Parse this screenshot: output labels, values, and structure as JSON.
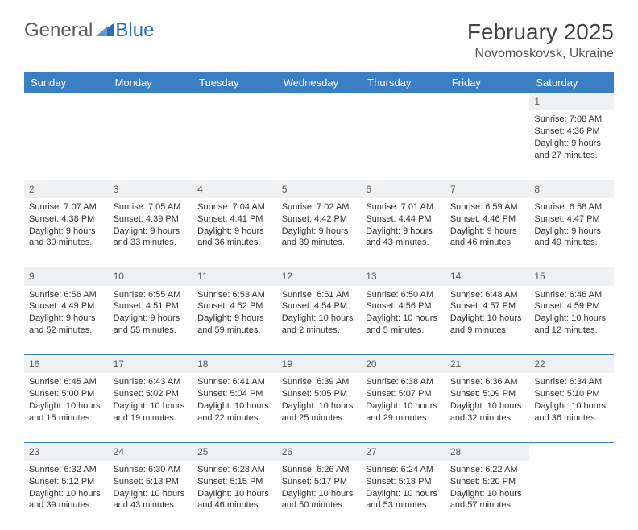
{
  "brand": {
    "part1": "General",
    "part2": "Blue"
  },
  "title": "February 2025",
  "location": "Novomoskovsk, Ukraine",
  "colors": {
    "header_bg": "#3a7fc4",
    "header_text": "#ffffff",
    "daynum_bg": "#eef0f2",
    "border": "#3a7fc4",
    "text": "#333333",
    "logo_gray": "#5a5a5a",
    "logo_blue": "#2a6db3",
    "page_bg": "#ffffff"
  },
  "weekdays": [
    "Sunday",
    "Monday",
    "Tuesday",
    "Wednesday",
    "Thursday",
    "Friday",
    "Saturday"
  ],
  "weeks": [
    {
      "nums": [
        "",
        "",
        "",
        "",
        "",
        "",
        "1"
      ],
      "cells": [
        "",
        "",
        "",
        "",
        "",
        "",
        "Sunrise: 7:08 AM\nSunset: 4:36 PM\nDaylight: 9 hours and 27 minutes."
      ]
    },
    {
      "nums": [
        "2",
        "3",
        "4",
        "5",
        "6",
        "7",
        "8"
      ],
      "cells": [
        "Sunrise: 7:07 AM\nSunset: 4:38 PM\nDaylight: 9 hours and 30 minutes.",
        "Sunrise: 7:05 AM\nSunset: 4:39 PM\nDaylight: 9 hours and 33 minutes.",
        "Sunrise: 7:04 AM\nSunset: 4:41 PM\nDaylight: 9 hours and 36 minutes.",
        "Sunrise: 7:02 AM\nSunset: 4:42 PM\nDaylight: 9 hours and 39 minutes.",
        "Sunrise: 7:01 AM\nSunset: 4:44 PM\nDaylight: 9 hours and 43 minutes.",
        "Sunrise: 6:59 AM\nSunset: 4:46 PM\nDaylight: 9 hours and 46 minutes.",
        "Sunrise: 6:58 AM\nSunset: 4:47 PM\nDaylight: 9 hours and 49 minutes."
      ]
    },
    {
      "nums": [
        "9",
        "10",
        "11",
        "12",
        "13",
        "14",
        "15"
      ],
      "cells": [
        "Sunrise: 6:56 AM\nSunset: 4:49 PM\nDaylight: 9 hours and 52 minutes.",
        "Sunrise: 6:55 AM\nSunset: 4:51 PM\nDaylight: 9 hours and 55 minutes.",
        "Sunrise: 6:53 AM\nSunset: 4:52 PM\nDaylight: 9 hours and 59 minutes.",
        "Sunrise: 6:51 AM\nSunset: 4:54 PM\nDaylight: 10 hours and 2 minutes.",
        "Sunrise: 6:50 AM\nSunset: 4:56 PM\nDaylight: 10 hours and 5 minutes.",
        "Sunrise: 6:48 AM\nSunset: 4:57 PM\nDaylight: 10 hours and 9 minutes.",
        "Sunrise: 6:46 AM\nSunset: 4:59 PM\nDaylight: 10 hours and 12 minutes."
      ]
    },
    {
      "nums": [
        "16",
        "17",
        "18",
        "19",
        "20",
        "21",
        "22"
      ],
      "cells": [
        "Sunrise: 6:45 AM\nSunset: 5:00 PM\nDaylight: 10 hours and 15 minutes.",
        "Sunrise: 6:43 AM\nSunset: 5:02 PM\nDaylight: 10 hours and 19 minutes.",
        "Sunrise: 6:41 AM\nSunset: 5:04 PM\nDaylight: 10 hours and 22 minutes.",
        "Sunrise: 6:39 AM\nSunset: 5:05 PM\nDaylight: 10 hours and 25 minutes.",
        "Sunrise: 6:38 AM\nSunset: 5:07 PM\nDaylight: 10 hours and 29 minutes.",
        "Sunrise: 6:36 AM\nSunset: 5:09 PM\nDaylight: 10 hours and 32 minutes.",
        "Sunrise: 6:34 AM\nSunset: 5:10 PM\nDaylight: 10 hours and 36 minutes."
      ]
    },
    {
      "nums": [
        "23",
        "24",
        "25",
        "26",
        "27",
        "28",
        ""
      ],
      "cells": [
        "Sunrise: 6:32 AM\nSunset: 5:12 PM\nDaylight: 10 hours and 39 minutes.",
        "Sunrise: 6:30 AM\nSunset: 5:13 PM\nDaylight: 10 hours and 43 minutes.",
        "Sunrise: 6:28 AM\nSunset: 5:15 PM\nDaylight: 10 hours and 46 minutes.",
        "Sunrise: 6:26 AM\nSunset: 5:17 PM\nDaylight: 10 hours and 50 minutes.",
        "Sunrise: 6:24 AM\nSunset: 5:18 PM\nDaylight: 10 hours and 53 minutes.",
        "Sunrise: 6:22 AM\nSunset: 5:20 PM\nDaylight: 10 hours and 57 minutes.",
        ""
      ]
    }
  ]
}
